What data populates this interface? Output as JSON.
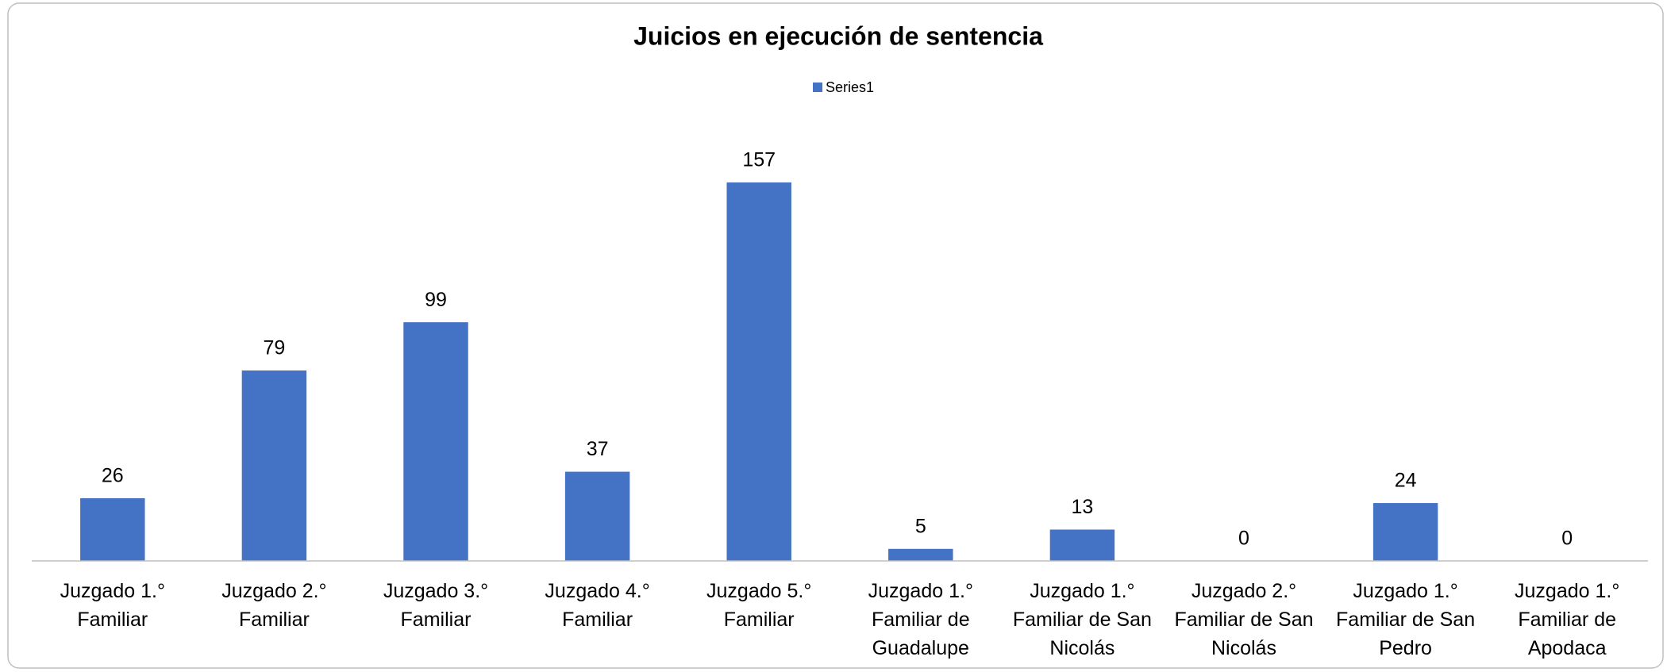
{
  "chart_data": {
    "type": "bar",
    "title": "Juicios en ejecución de sentencia",
    "categories": [
      "Juzgado 1.° Familiar",
      "Juzgado 2.° Familiar",
      "Juzgado 3.° Familiar",
      "Juzgado 4.° Familiar",
      "Juzgado 5.° Familiar",
      "Juzgado 1.° Familiar de Guadalupe",
      "Juzgado 1.° Familiar de San Nicolás",
      "Juzgado 2.° Familiar de San Nicolás",
      "Juzgado 1.° Familiar de San Pedro",
      "Juzgado 1.° Familiar de Apodaca"
    ],
    "series": [
      {
        "name": "Series1",
        "color": "#4472c4",
        "values": [
          26,
          79,
          99,
          37,
          157,
          5,
          13,
          0,
          24,
          0
        ]
      }
    ],
    "ylim": [
      0,
      180
    ],
    "grid": false,
    "legend": "top"
  }
}
